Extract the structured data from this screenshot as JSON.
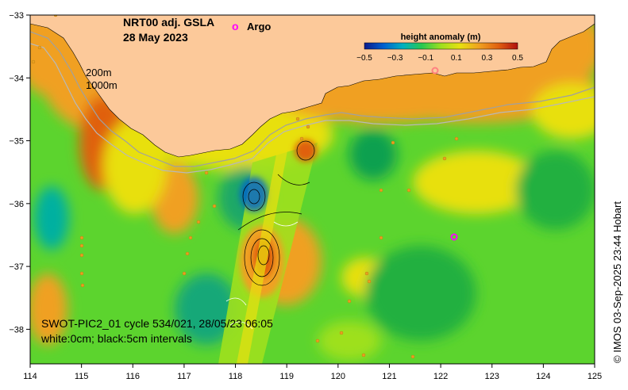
{
  "map": {
    "title_line1": "NRT00 adj. GSLA",
    "title_line2": "28 May 2023",
    "argo_marker": "o",
    "argo_label": "Argo",
    "depth_label_200": "200m",
    "depth_label_1000": "1000m",
    "swath_label_line1": "SWOT-PIC2_01 cycle 534/021, 28/05/23 06:05",
    "swath_label_line2": "white:0cm; black:5cm intervals",
    "credit": "© IMOS 03-Sep-2025 23:44 Hobart"
  },
  "colorbar": {
    "title": "height anomaly (m)",
    "tick_labels": [
      "−0.5",
      "−0.3",
      "−0.1",
      "0.1",
      "0.3",
      "0.5"
    ],
    "range": [
      -0.5,
      0.5
    ],
    "colors": [
      "#0c1a8c",
      "#0060d0",
      "#00b0c0",
      "#28c850",
      "#9ee01e",
      "#e8e010",
      "#f0a020",
      "#e06010",
      "#b01010"
    ]
  },
  "axes": {
    "x_ticks": [
      "114",
      "115",
      "116",
      "117",
      "118",
      "119",
      "120",
      "121",
      "122",
      "123",
      "124",
      "125"
    ],
    "y_ticks": [
      "−33",
      "−34",
      "−35",
      "−36",
      "−37",
      "−38"
    ]
  },
  "colors": {
    "land": "#fcc99a",
    "ocean_base": "#5cd42e",
    "argo": "#ff00ff"
  }
}
